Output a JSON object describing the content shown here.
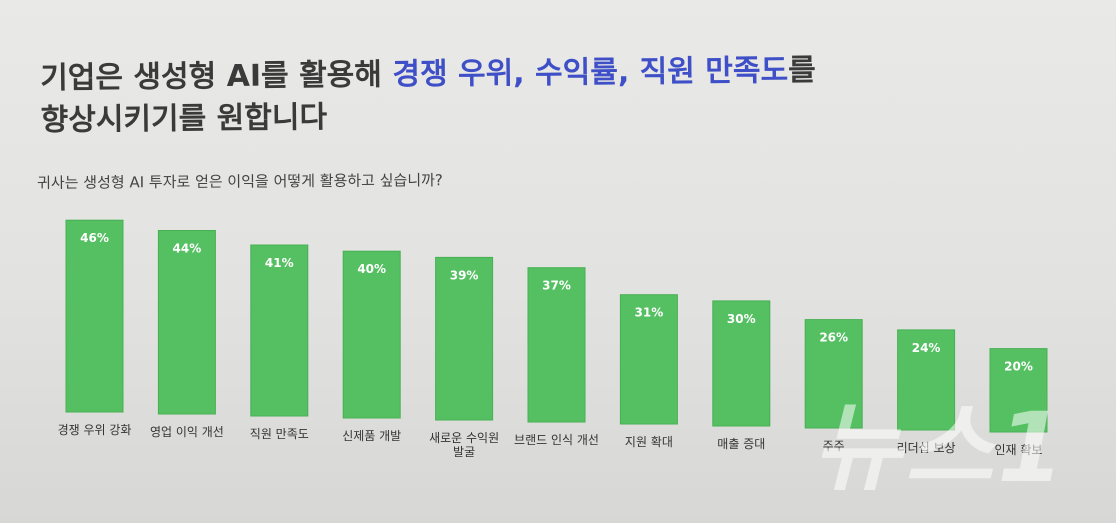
{
  "slide": {
    "title_line1_plain": "기업은 생성형 AI를 활용해 ",
    "title_line1_accent": "경쟁 우위, 수익률, 직원 만족도",
    "title_line1_tail": "를",
    "title_line2": "향상시키기를 원합니다",
    "question": "귀사는 생성형 AI 투자로 얻은 이익을 어떻게 활용하고 싶습니까?",
    "watermark": "뉴스1"
  },
  "colors": {
    "bar": "#55c062",
    "bar_edge": "#47b054",
    "accent": "#3e4fc7",
    "label_text": "#ffffff"
  },
  "chart_data": {
    "type": "bar",
    "categories": [
      "경쟁 우위 강화",
      "영업 이익 개선",
      "직원 만족도",
      "신제품 개발",
      "새로운 수익원 발굴",
      "브랜드 인식 개선",
      "지원 확대",
      "매출 증대",
      "주주",
      "리더십 보상",
      "인재 확보"
    ],
    "category_lines": [
      [
        "경쟁 우위 강화"
      ],
      [
        "영업 이익 개선"
      ],
      [
        "직원 만족도"
      ],
      [
        "신제품 개발"
      ],
      [
        "새로운 수익원",
        "발굴"
      ],
      [
        "브랜드 인식 개선"
      ],
      [
        "지원 확대"
      ],
      [
        "매출 증대"
      ],
      [
        "주주"
      ],
      [
        "리더십 보상"
      ],
      [
        "인재 확보"
      ]
    ],
    "values": [
      46,
      44,
      41,
      40,
      39,
      37,
      31,
      30,
      26,
      24,
      20
    ],
    "data_labels": [
      "46%",
      "44%",
      "41%",
      "40%",
      "39%",
      "37%",
      "31%",
      "30%",
      "26%",
      "24%",
      "20%"
    ],
    "unit": "%",
    "ylim": [
      0,
      46
    ],
    "grid": false,
    "legend": "none"
  }
}
